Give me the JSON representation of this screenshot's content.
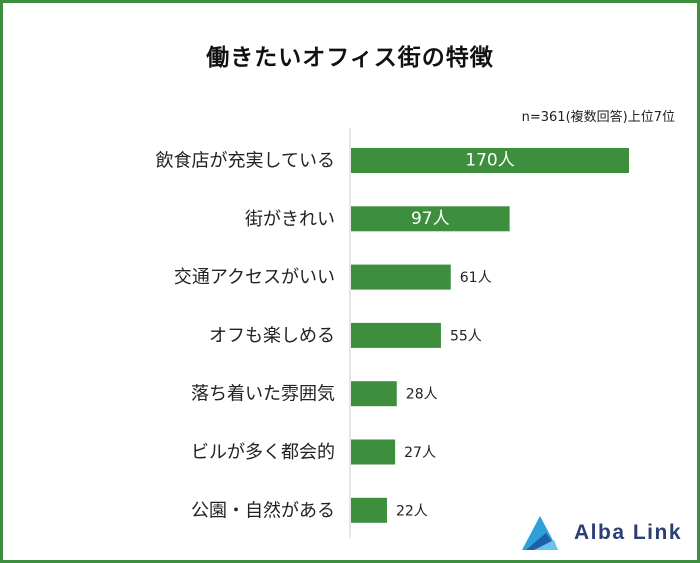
{
  "chart_data": {
    "type": "bar",
    "orientation": "horizontal",
    "title": "働きたいオフィス街の特徴",
    "subtitle": "n=361(複数回答)上位7位",
    "unit": "人",
    "categories": [
      "飲食店が充実している",
      "街がきれい",
      "交通アクセスがいい",
      "オフも楽しめる",
      "落ち着いた雰囲気",
      "ビルが多く都会的",
      "公園・自然がある"
    ],
    "values": [
      170,
      97,
      61,
      55,
      28,
      27,
      22
    ],
    "data_labels": [
      "170人",
      "97人",
      "61人",
      "55人",
      "28人",
      "27人",
      "22人"
    ],
    "bar_color": "#3d8f3d",
    "border_color": "#3d8f3d",
    "grid": false,
    "legend": "none"
  },
  "brand": {
    "name": "Alba Link",
    "color": "#2a3f73",
    "accent": "#2e9fd8"
  }
}
